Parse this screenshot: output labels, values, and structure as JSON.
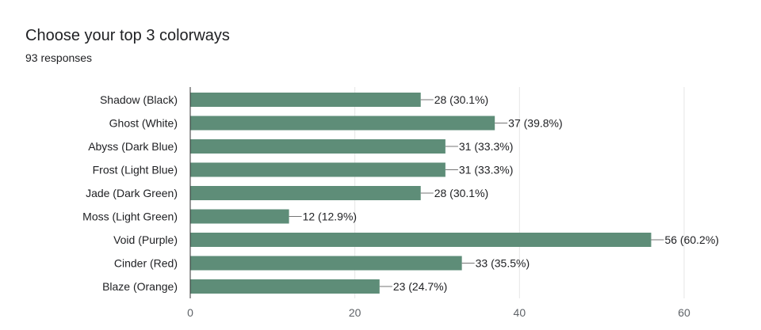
{
  "title": "Choose your top 3 colorways",
  "subtitle": "93 responses",
  "chart_data": {
    "type": "bar",
    "orientation": "horizontal",
    "title": "Choose your top 3 colorways",
    "subtitle": "93 responses",
    "categories": [
      "Shadow (Black)",
      "Ghost (White)",
      "Abyss (Dark Blue)",
      "Frost (Light Blue)",
      "Jade (Dark Green)",
      "Moss (Light Green)",
      "Void (Purple)",
      "Cinder (Red)",
      "Blaze (Orange)"
    ],
    "values": [
      28,
      37,
      31,
      31,
      28,
      12,
      56,
      33,
      23
    ],
    "labels": [
      "28 (30.1%)",
      "37 (39.8%)",
      "31 (33.3%)",
      "31 (33.3%)",
      "28 (30.1%)",
      "12 (12.9%)",
      "56 (60.2%)",
      "33 (35.5%)",
      "23 (24.7%)"
    ],
    "xlim": [
      0,
      60
    ],
    "xticks": [
      "0",
      "20",
      "40",
      "60"
    ],
    "grid": true,
    "bar_color": "#5e8d78"
  }
}
